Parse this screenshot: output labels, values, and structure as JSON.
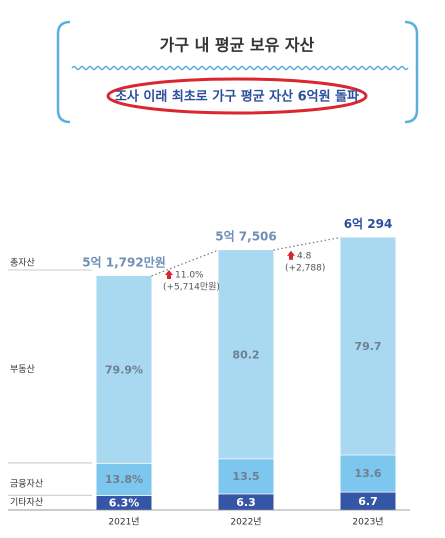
{
  "chart_data": {
    "type": "stacked_bar",
    "title": "가구 내 평균 보유 자산",
    "subtitle": "조사 이래 최초로 가구 평균 자산 6억원 돌파",
    "categories": [
      "2021년",
      "2022년",
      "2023년"
    ],
    "series": [
      {
        "name": "기타자산",
        "color": "#3556a6",
        "values": [
          6.3,
          6.3,
          6.7
        ],
        "value_labels": [
          "6.3%",
          "6.3",
          "6.7"
        ]
      },
      {
        "name": "금융자산",
        "color": "#7dc6ee",
        "values": [
          13.8,
          13.5,
          13.6
        ],
        "value_labels": [
          "13.8%",
          "13.5",
          "13.6"
        ]
      },
      {
        "name": "부동산",
        "color": "#a9d9f0",
        "values": [
          79.9,
          80.2,
          79.7
        ],
        "value_labels": [
          "79.9%",
          "80.2",
          "79.7"
        ]
      }
    ],
    "total": {
      "name": "총자산",
      "values": [
        51792,
        57506,
        60294
      ],
      "value_labels": [
        "5억 1,792만원",
        "5억 7,506",
        "6억 294"
      ]
    },
    "changes": {
      "values": [
        11.0,
        4.8
      ],
      "value_labels": [
        "11.0%",
        "4.8"
      ],
      "amounts": [
        5714,
        2788
      ],
      "amount_labels": [
        "(+5,714만원)",
        "(+2,788)"
      ]
    }
  }
}
